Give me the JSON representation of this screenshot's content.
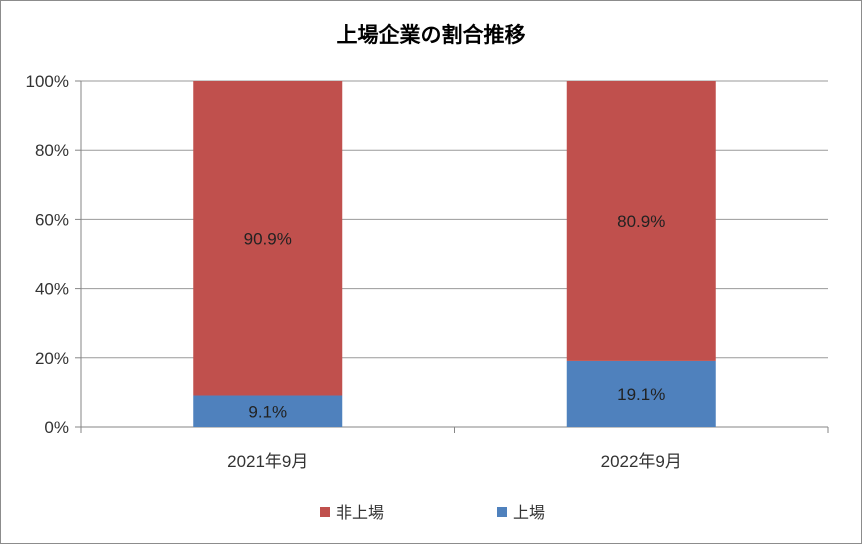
{
  "chart_data": {
    "type": "bar",
    "stacked": true,
    "title": "上場企業の割合推移",
    "categories": [
      "2021年9月",
      "2022年9月"
    ],
    "series": [
      {
        "name": "上場",
        "values": [
          9.1,
          19.1
        ],
        "labels": [
          "9.1%",
          "19.1%"
        ],
        "color": "#4f81bd"
      },
      {
        "name": "非上場",
        "values": [
          90.9,
          80.9
        ],
        "labels": [
          "90.9%",
          "80.9%"
        ],
        "color": "#c0504d"
      }
    ],
    "legend_order": [
      1,
      0
    ],
    "yticks": [
      "0%",
      "20%",
      "40%",
      "60%",
      "80%",
      "100%"
    ],
    "ylim": [
      0,
      100
    ],
    "grid": true,
    "legend_position": "bottom"
  }
}
